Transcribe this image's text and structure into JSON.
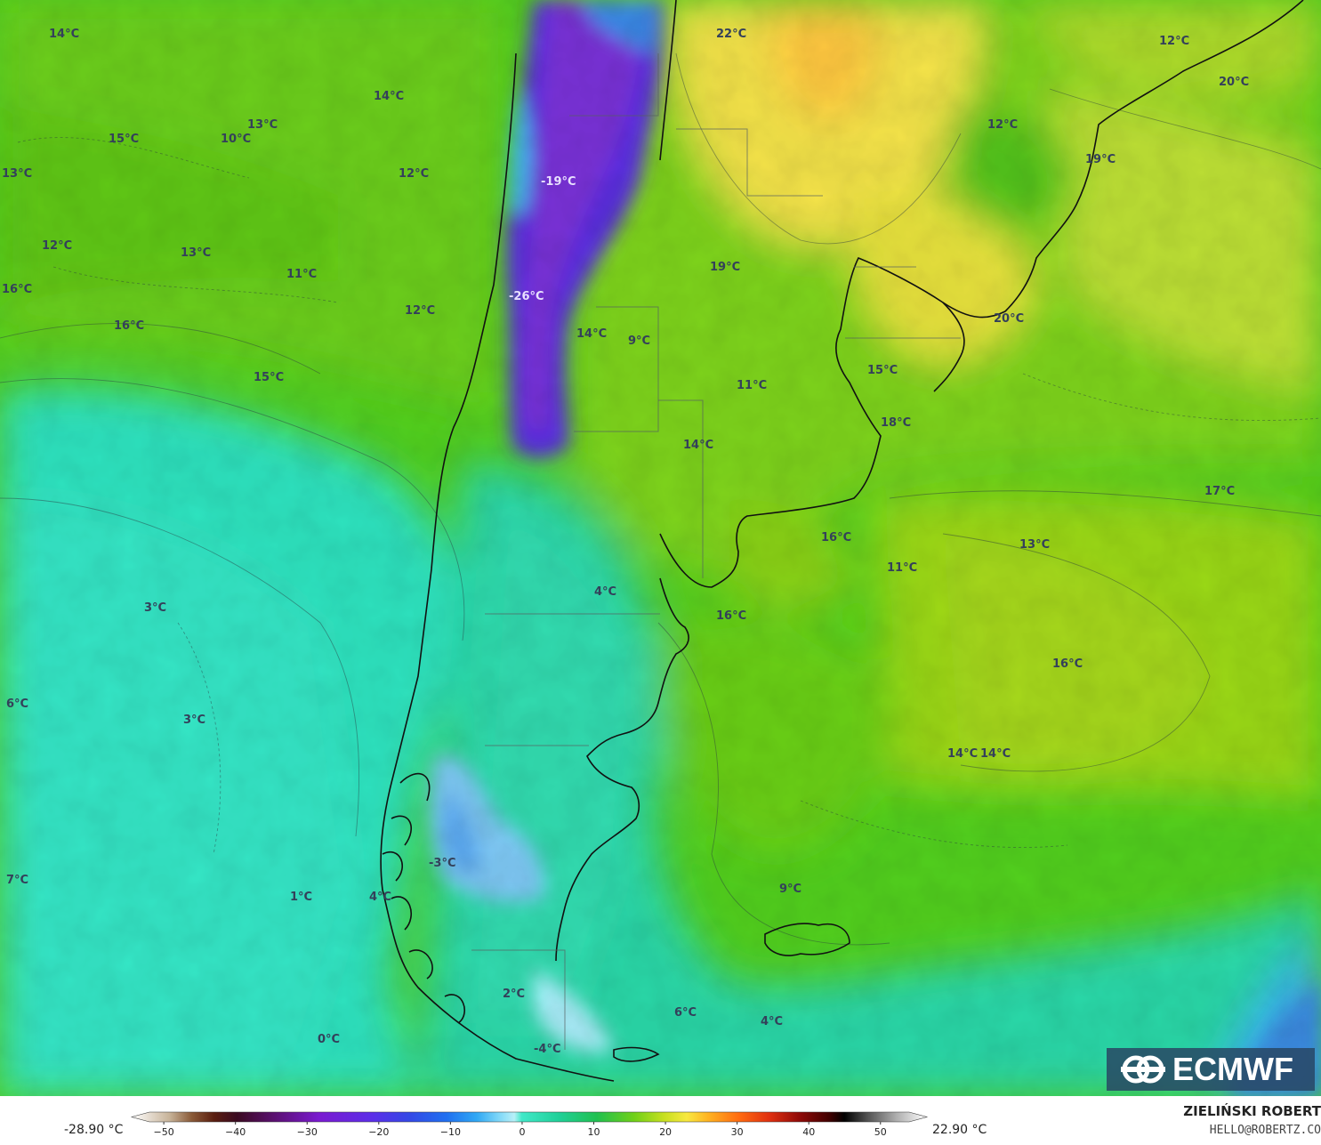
{
  "colors": {
    "ocean_cold": "#2fe0bb",
    "ocean_mid": "#20d49a",
    "green": "#56d21a",
    "lime": "#9ad816",
    "yellow": "#f4e34e",
    "orange": "#ffc840",
    "blue": "#3a9ae8",
    "violet": "#6a28e0",
    "purple": "#7a3ad0",
    "text": "#34405a"
  },
  "map": {
    "labels": [
      {
        "text": "14°C"
      },
      {
        "text": "14°C"
      },
      {
        "text": "13°C"
      },
      {
        "text": "15°C"
      },
      {
        "text": "10°C"
      },
      {
        "text": "13°C"
      },
      {
        "text": "12°C"
      },
      {
        "text": "12°C"
      },
      {
        "text": "13°C"
      },
      {
        "text": "11°C"
      },
      {
        "text": "16°C"
      },
      {
        "text": "16°C"
      },
      {
        "text": "12°C"
      },
      {
        "text": "15°C"
      },
      {
        "text": "-19°C"
      },
      {
        "text": "-26°C"
      },
      {
        "text": "22°C"
      },
      {
        "text": "12°C"
      },
      {
        "text": "20°C"
      },
      {
        "text": "12°C"
      },
      {
        "text": "19°C"
      },
      {
        "text": "19°C"
      },
      {
        "text": "14°C"
      },
      {
        "text": "9°C"
      },
      {
        "text": "20°C"
      },
      {
        "text": "11°C"
      },
      {
        "text": "15°C"
      },
      {
        "text": "18°C"
      },
      {
        "text": "14°C"
      },
      {
        "text": "17°C"
      },
      {
        "text": "16°C"
      },
      {
        "text": "13°C"
      },
      {
        "text": "11°C"
      },
      {
        "text": "4°C"
      },
      {
        "text": "16°C"
      },
      {
        "text": "3°C"
      },
      {
        "text": "16°C"
      },
      {
        "text": "6°C"
      },
      {
        "text": "3°C"
      },
      {
        "text": "14°C"
      },
      {
        "text": "14°C"
      },
      {
        "text": "7°C"
      },
      {
        "text": "-3°C"
      },
      {
        "text": "9°C"
      },
      {
        "text": "1°C"
      },
      {
        "text": "4°C"
      },
      {
        "text": "2°C"
      },
      {
        "text": "6°C"
      },
      {
        "text": "4°C"
      },
      {
        "text": "0°C"
      },
      {
        "text": "-4°C"
      }
    ]
  },
  "legend": {
    "min_label": "-28.90 °C",
    "max_label": "22.90 °C",
    "ticks": [
      "−50",
      "−40",
      "−30",
      "−20",
      "−10",
      "0",
      "10",
      "20",
      "30",
      "40",
      "50"
    ],
    "tick_values": [
      -50,
      -40,
      -30,
      -20,
      -10,
      0,
      10,
      20,
      30,
      40,
      50
    ],
    "range": [
      -52,
      54
    ],
    "stops": [
      {
        "v": -52,
        "c": "#ffffff"
      },
      {
        "v": -47,
        "c": "#c8b49a"
      },
      {
        "v": -44,
        "c": "#8a5a38"
      },
      {
        "v": -41,
        "c": "#5a1e10"
      },
      {
        "v": -38,
        "c": "#3a0a20"
      },
      {
        "v": -33,
        "c": "#5a1070"
      },
      {
        "v": -27,
        "c": "#7a1ad0"
      },
      {
        "v": -20,
        "c": "#5c2ee8"
      },
      {
        "v": -15,
        "c": "#3448e6"
      },
      {
        "v": -10,
        "c": "#2070f0"
      },
      {
        "v": -6,
        "c": "#30a8f4"
      },
      {
        "v": -3,
        "c": "#80d8f8"
      },
      {
        "v": -1,
        "c": "#b8f0f8"
      },
      {
        "v": 0,
        "c": "#40e8c8"
      },
      {
        "v": 5,
        "c": "#20d098"
      },
      {
        "v": 10,
        "c": "#20c050"
      },
      {
        "v": 15,
        "c": "#70d018"
      },
      {
        "v": 19,
        "c": "#c8e020"
      },
      {
        "v": 22,
        "c": "#f8e840"
      },
      {
        "v": 25,
        "c": "#ffb020"
      },
      {
        "v": 29,
        "c": "#ff6a10"
      },
      {
        "v": 33,
        "c": "#e03010"
      },
      {
        "v": 37,
        "c": "#900a08"
      },
      {
        "v": 41,
        "c": "#400000"
      },
      {
        "v": 43,
        "c": "#000000"
      },
      {
        "v": 46,
        "c": "#505050"
      },
      {
        "v": 50,
        "c": "#b0b0b0"
      },
      {
        "v": 54,
        "c": "#ffffff"
      }
    ]
  },
  "credit": {
    "name": "ZIELIŃSKI ROBERT",
    "email": "HELLO@ROBERTZ.CO"
  },
  "logo": {
    "text": "ECMWF"
  }
}
